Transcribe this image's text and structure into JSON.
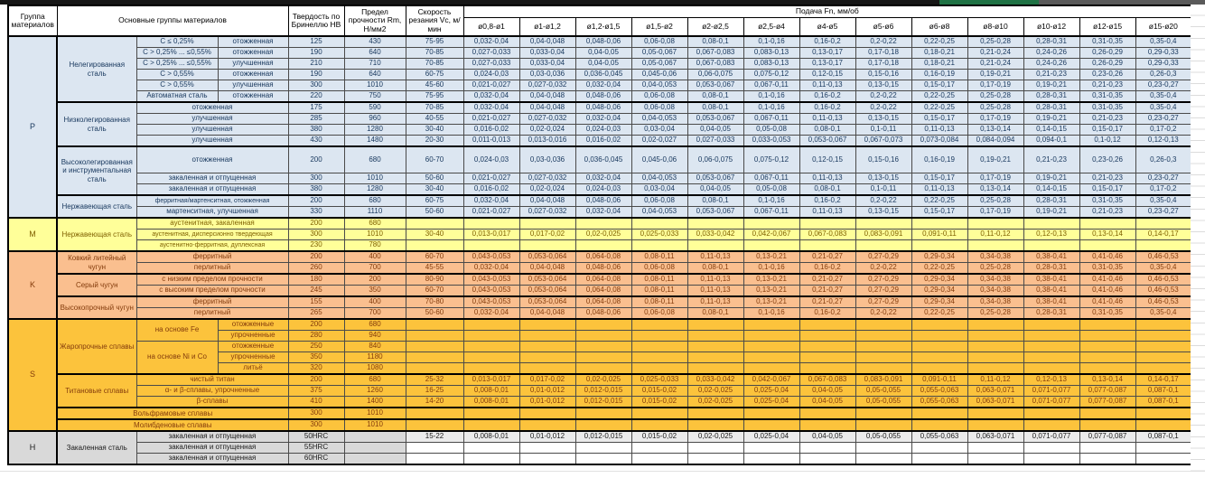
{
  "header": {
    "col_group": "Группа материалов",
    "col_materials": "Основные группы материалов",
    "col_hardness": "Твердость по Бринеллю HB",
    "col_strength": "Предел прочности Rm, Н/мм2",
    "col_speed": "Скорость резания Vc, м/мин",
    "feed_title": "Подача Fn, мм/об",
    "feed_cols": [
      "ø0,8-ø1",
      "ø1-ø1,2",
      "ø1,2-ø1,5",
      "ø1,5-ø2",
      "ø2-ø2,5",
      "ø2,5-ø4",
      "ø4-ø5",
      "ø5-ø6",
      "ø6-ø8",
      "ø8-ø10",
      "ø10-ø12",
      "ø12-ø15",
      "ø15-ø20"
    ]
  },
  "groups": [
    {
      "letter": "P",
      "color": "#DCE6F1",
      "text": "#17375D",
      "materials": [
        {
          "name": "Нелегированная сталь",
          "rows": [
            {
              "c1": "C ≤ 0,25%",
              "c2": "отожженная",
              "hb": "125",
              "rm": "430",
              "vc": "75-95",
              "feeds": [
                "0,032-0,04",
                "0,04-0,048",
                "0,048-0,06",
                "0,06-0,08",
                "0,08-0,1",
                "0,1-0,16",
                "0,16-0,2",
                "0,2-0,22",
                "0,22-0,25",
                "0,25-0,28",
                "0,28-0,31",
                "0,31-0,35",
                "0,35-0,4"
              ]
            },
            {
              "c1": "C > 0,25% ... ≤0,55%",
              "c2": "отожженная",
              "hb": "190",
              "rm": "640",
              "vc": "70-85",
              "feeds": [
                "0,027-0,033",
                "0,033-0,04",
                "0,04-0,05",
                "0,05-0,067",
                "0,067-0,083",
                "0,083-0,13",
                "0,13-0,17",
                "0,17-0,18",
                "0,18-0,21",
                "0,21-0,24",
                "0,24-0,26",
                "0,26-0,29",
                "0,29-0,33"
              ]
            },
            {
              "c1": "C > 0,25% ... ≤0,55%",
              "c2": "улучшенная",
              "hb": "210",
              "rm": "710",
              "vc": "70-85",
              "feeds": [
                "0,027-0,033",
                "0,033-0,04",
                "0,04-0,05",
                "0,05-0,067",
                "0,067-0,083",
                "0,083-0,13",
                "0,13-0,17",
                "0,17-0,18",
                "0,18-0,21",
                "0,21-0,24",
                "0,24-0,26",
                "0,26-0,29",
                "0,29-0,33"
              ]
            },
            {
              "c1": "C > 0,55%",
              "c2": "отожженная",
              "hb": "190",
              "rm": "640",
              "vc": "60-75",
              "feeds": [
                "0,024-0,03",
                "0,03-0,036",
                "0,036-0,045",
                "0,045-0,06",
                "0,06-0,075",
                "0,075-0,12",
                "0,12-0,15",
                "0,15-0,16",
                "0,16-0,19",
                "0,19-0,21",
                "0,21-0,23",
                "0,23-0,26",
                "0,26-0,3"
              ]
            },
            {
              "c1": "C > 0,55%",
              "c2": "улучшенная",
              "hb": "300",
              "rm": "1010",
              "vc": "45-60",
              "feeds": [
                "0,021-0,027",
                "0,027-0,032",
                "0,032-0,04",
                "0,04-0,053",
                "0,053-0,067",
                "0,067-0,11",
                "0,11-0,13",
                "0,13-0,15",
                "0,15-0,17",
                "0,17-0,19",
                "0,19-0,21",
                "0,21-0,23",
                "0,23-0,27"
              ]
            },
            {
              "c1": "Автоматная сталь",
              "c2": "отожженная",
              "hb": "220",
              "rm": "750",
              "vc": "75-95",
              "feeds": [
                "0,032-0,04",
                "0,04-0,048",
                "0,048-0,06",
                "0,06-0,08",
                "0,08-0,1",
                "0,1-0,16",
                "0,16-0,2",
                "0,2-0,22",
                "0,22-0,25",
                "0,25-0,28",
                "0,28-0,31",
                "0,31-0,35",
                "0,35-0,4"
              ]
            }
          ]
        },
        {
          "name": "Низколегированная сталь",
          "rows": [
            {
              "c12": "отожженная",
              "hb": "175",
              "rm": "590",
              "vc": "70-85",
              "feeds": [
                "0,032-0,04",
                "0,04-0,048",
                "0,048-0,06",
                "0,06-0,08",
                "0,08-0,1",
                "0,1-0,16",
                "0,16-0,2",
                "0,2-0,22",
                "0,22-0,25",
                "0,25-0,28",
                "0,28-0,31",
                "0,31-0,35",
                "0,35-0,4"
              ]
            },
            {
              "c12": "улучшенная",
              "hb": "285",
              "rm": "960",
              "vc": "40-55",
              "feeds": [
                "0,021-0,027",
                "0,027-0,032",
                "0,032-0,04",
                "0,04-0,053",
                "0,053-0,067",
                "0,067-0,11",
                "0,11-0,13",
                "0,13-0,15",
                "0,15-0,17",
                "0,17-0,19",
                "0,19-0,21",
                "0,21-0,23",
                "0,23-0,27"
              ]
            },
            {
              "c12": "улучшенная",
              "hb": "380",
              "rm": "1280",
              "vc": "30-40",
              "feeds": [
                "0,016-0,02",
                "0,02-0,024",
                "0,024-0,03",
                "0,03-0,04",
                "0,04-0,05",
                "0,05-0,08",
                "0,08-0,1",
                "0,1-0,11",
                "0,11-0,13",
                "0,13-0,14",
                "0,14-0,15",
                "0,15-0,17",
                "0,17-0,2"
              ]
            },
            {
              "c12": "улучшенная",
              "hb": "430",
              "rm": "1480",
              "vc": "20-30",
              "feeds": [
                "0,011-0,013",
                "0,013-0,016",
                "0,016-0,02",
                "0,02-0,027",
                "0,027-0,033",
                "0,033-0,053",
                "0,053-0,067",
                "0,067-0,073",
                "0,073-0,084",
                "0,084-0,094",
                "0,094-0,1",
                "0,1-0,12",
                "0,12-0,13"
              ]
            }
          ]
        },
        {
          "name": "Высоколегированная и инструментальная сталь",
          "rows": [
            {
              "c12": "отожженная",
              "tall": true,
              "hb": "200",
              "rm": "680",
              "vc": "60-70",
              "feeds": [
                "0,024-0,03",
                "0,03-0,036",
                "0,036-0,045",
                "0,045-0,06",
                "0,06-0,075",
                "0,075-0,12",
                "0,12-0,15",
                "0,15-0,16",
                "0,16-0,19",
                "0,19-0,21",
                "0,21-0,23",
                "0,23-0,26",
                "0,26-0,3"
              ]
            },
            {
              "c12": "закаленная и отпущенная",
              "hb": "300",
              "rm": "1010",
              "vc": "50-60",
              "feeds": [
                "0,021-0,027",
                "0,027-0,032",
                "0,032-0,04",
                "0,04-0,053",
                "0,053-0,067",
                "0,067-0,11",
                "0,11-0,13",
                "0,13-0,15",
                "0,15-0,17",
                "0,17-0,19",
                "0,19-0,21",
                "0,21-0,23",
                "0,23-0,27"
              ]
            },
            {
              "c12": "закаленная и отпущенная",
              "hb": "380",
              "rm": "1280",
              "vc": "30-40",
              "feeds": [
                "0,016-0,02",
                "0,02-0,024",
                "0,024-0,03",
                "0,03-0,04",
                "0,04-0,05",
                "0,05-0,08",
                "0,08-0,1",
                "0,1-0,11",
                "0,11-0,13",
                "0,13-0,14",
                "0,14-0,15",
                "0,15-0,17",
                "0,17-0,2"
              ]
            }
          ]
        },
        {
          "name": "Нержавеющая сталь",
          "rows": [
            {
              "c12": "ферритная/мартенситная, отожженная",
              "hb": "200",
              "rm": "680",
              "vc": "60-75",
              "feeds": [
                "0,032-0,04",
                "0,04-0,048",
                "0,048-0,06",
                "0,06-0,08",
                "0,08-0,1",
                "0,1-0,16",
                "0,16-0,2",
                "0,2-0,22",
                "0,22-0,25",
                "0,25-0,28",
                "0,28-0,31",
                "0,31-0,35",
                "0,35-0,4"
              ]
            },
            {
              "c12": "мартенситная, улучшенная",
              "hb": "330",
              "rm": "1110",
              "vc": "50-60",
              "feeds": [
                "0,021-0,027",
                "0,027-0,032",
                "0,032-0,04",
                "0,04-0,053",
                "0,053-0,067",
                "0,067-0,11",
                "0,11-0,13",
                "0,13-0,15",
                "0,15-0,17",
                "0,17-0,19",
                "0,19-0,21",
                "0,21-0,23",
                "0,23-0,27"
              ]
            }
          ]
        }
      ]
    },
    {
      "letter": "M",
      "color": "#FFFF99",
      "text": "#7F5F00",
      "materials": [
        {
          "name": "Нержавеющая сталь",
          "rows": [
            {
              "c12": "аустенитная, закаленная",
              "hb": "200",
              "rm": "680",
              "vc": "",
              "feeds": []
            },
            {
              "c12": "аустенитная, дисперсионно твердеющая",
              "hb": "300",
              "rm": "1010",
              "vc": "30-40",
              "feeds": [
                "0,013-0,017",
                "0,017-0,02",
                "0,02-0,025",
                "0,025-0,033",
                "0,033-0,042",
                "0,042-0,067",
                "0,067-0,083",
                "0,083-0,091",
                "0,091-0,11",
                "0,11-0,12",
                "0,12-0,13",
                "0,13-0,14",
                "0,14-0,17"
              ]
            },
            {
              "c12": "аустенитно-ферритная, дуплексная",
              "hb": "230",
              "rm": "780",
              "vc": "",
              "feeds": []
            }
          ]
        }
      ]
    },
    {
      "letter": "K",
      "color": "#FABF8F",
      "text": "#843C0C",
      "materials": [
        {
          "name": "Ковкий литейный чугун",
          "rows": [
            {
              "c12": "ферритный",
              "hb": "200",
              "rm": "400",
              "vc": "60-70",
              "feeds": [
                "0,043-0,053",
                "0,053-0,064",
                "0,064-0,08",
                "0,08-0,11",
                "0,11-0,13",
                "0,13-0,21",
                "0,21-0,27",
                "0,27-0,29",
                "0,29-0,34",
                "0,34-0,38",
                "0,38-0,41",
                "0,41-0,46",
                "0,46-0,53"
              ]
            },
            {
              "c12": "перлитный",
              "hb": "260",
              "rm": "700",
              "vc": "45-55",
              "feeds": [
                "0,032-0,04",
                "0,04-0,048",
                "0,048-0,06",
                "0,06-0,08",
                "0,08-0,1",
                "0,1-0,16",
                "0,16-0,2",
                "0,2-0,22",
                "0,22-0,25",
                "0,25-0,28",
                "0,28-0,31",
                "0,31-0,35",
                "0,35-0,4"
              ]
            }
          ]
        },
        {
          "name": "Серый чугун",
          "rows": [
            {
              "c12": "с низким пределом прочности",
              "hb": "180",
              "rm": "200",
              "vc": "80-90",
              "feeds": [
                "0,043-0,053",
                "0,053-0,064",
                "0,064-0,08",
                "0,08-0,11",
                "0,11-0,13",
                "0,13-0,21",
                "0,21-0,27",
                "0,27-0,29",
                "0,29-0,34",
                "0,34-0,38",
                "0,38-0,41",
                "0,41-0,46",
                "0,46-0,53"
              ]
            },
            {
              "c12": "с высоким пределом прочности",
              "hb": "245",
              "rm": "350",
              "vc": "60-70",
              "feeds": [
                "0,043-0,053",
                "0,053-0,064",
                "0,064-0,08",
                "0,08-0,11",
                "0,11-0,13",
                "0,13-0,21",
                "0,21-0,27",
                "0,27-0,29",
                "0,29-0,34",
                "0,34-0,38",
                "0,38-0,41",
                "0,41-0,46",
                "0,46-0,53"
              ]
            }
          ]
        },
        {
          "name": "Высокопрочный чугун",
          "rows": [
            {
              "c12": "ферритный",
              "hb": "155",
              "rm": "400",
              "vc": "70-80",
              "feeds": [
                "0,043-0,053",
                "0,053-0,064",
                "0,064-0,08",
                "0,08-0,11",
                "0,11-0,13",
                "0,13-0,21",
                "0,21-0,27",
                "0,27-0,29",
                "0,29-0,34",
                "0,34-0,38",
                "0,38-0,41",
                "0,41-0,46",
                "0,46-0,53"
              ]
            },
            {
              "c12": "перлитный",
              "hb": "265",
              "rm": "700",
              "vc": "50-60",
              "feeds": [
                "0,032-0,04",
                "0,04-0,048",
                "0,048-0,06",
                "0,06-0,08",
                "0,08-0,1",
                "0,1-0,16",
                "0,16-0,2",
                "0,2-0,22",
                "0,22-0,25",
                "0,25-0,28",
                "0,28-0,31",
                "0,31-0,35",
                "0,35-0,4"
              ]
            }
          ]
        }
      ]
    },
    {
      "letter": "S",
      "color": "#FCC33C",
      "text": "#843C0C",
      "materials": [
        {
          "name": "Жаропрочные сплавы",
          "rows": [
            {
              "c1": "на основе Fe",
              "c1_rows": 2,
              "c2": "отожженные",
              "hb": "200",
              "rm": "680",
              "vc": "",
              "feeds": []
            },
            {
              "c2": "упрочненные",
              "hb": "280",
              "rm": "940",
              "vc": "",
              "feeds": []
            },
            {
              "c1": "на основе Ni и Co",
              "c1_rows": 3,
              "c2": "отожженные",
              "hb": "250",
              "rm": "840",
              "vc": "",
              "feeds": []
            },
            {
              "c2": "упрочненные",
              "hb": "350",
              "rm": "1180",
              "vc": "",
              "feeds": []
            },
            {
              "c2": "литьё",
              "hb": "320",
              "rm": "1080",
              "vc": "",
              "feeds": []
            }
          ]
        },
        {
          "name": "Титановые сплавы",
          "rows": [
            {
              "c12": "чистый титан",
              "hb": "200",
              "rm": "680",
              "vc": "25-32",
              "feeds": [
                "0,013-0,017",
                "0,017-0,02",
                "0,02-0,025",
                "0,025-0,033",
                "0,033-0,042",
                "0,042-0,067",
                "0,067-0,083",
                "0,083-0,091",
                "0,091-0,11",
                "0,11-0,12",
                "0,12-0,13",
                "0,13-0,14",
                "0,14-0,17"
              ]
            },
            {
              "c12": "α- и β-сплавы, упрочненные",
              "hb": "375",
              "rm": "1260",
              "vc": "16-25",
              "feeds": [
                "0,008-0,01",
                "0,01-0,012",
                "0,012-0,015",
                "0,015-0,02",
                "0,02-0,025",
                "0,025-0,04",
                "0,04-0,05",
                "0,05-0,055",
                "0,055-0,063",
                "0,063-0,071",
                "0,071-0,077",
                "0,077-0,087",
                "0,087-0,1"
              ]
            },
            {
              "c12": "β-сплавы",
              "hb": "410",
              "rm": "1400",
              "vc": "14-20",
              "feeds": [
                "0,008-0,01",
                "0,01-0,012",
                "0,012-0,015",
                "0,015-0,02",
                "0,02-0,025",
                "0,025-0,04",
                "0,04-0,05",
                "0,05-0,055",
                "0,055-0,063",
                "0,063-0,071",
                "0,071-0,077",
                "0,077-0,087",
                "0,087-0,1"
              ]
            }
          ]
        },
        {
          "name": "Вольфрамовые сплавы",
          "span3": true,
          "rows": [
            {
              "hb": "300",
              "rm": "1010",
              "vc": "",
              "feeds": []
            }
          ]
        },
        {
          "name": "Молибденовые сплавы",
          "span3": true,
          "rows": [
            {
              "hb": "300",
              "rm": "1010",
              "vc": "",
              "feeds": []
            }
          ]
        }
      ]
    },
    {
      "letter": "H",
      "color": "#D9D9D9",
      "text": "#1A1A1A",
      "materials": [
        {
          "name": "Закаленная сталь",
          "rows": [
            {
              "c12": "закаленная и отпущенная",
              "hb": "50HRC",
              "rm": "",
              "vc": "15-22",
              "data_bg": "#EBEBEB",
              "feeds": [
                "0,008-0,01",
                "0,01-0,012",
                "0,012-0,015",
                "0,015-0,02",
                "0,02-0,025",
                "0,025-0,04",
                "0,04-0,05",
                "0,05-0,055",
                "0,055-0,063",
                "0,063-0,071",
                "0,071-0,077",
                "0,077-0,087",
                "0,087-0,1"
              ]
            },
            {
              "c12": "закаленная и отпущенная",
              "hb": "55HRC",
              "rm": "",
              "vc": "",
              "data_bg": "#FFFFFF",
              "feeds": []
            },
            {
              "c12": "закаленная и отпущенная",
              "hb": "60HRC",
              "rm": "",
              "vc": "",
              "data_bg": "#FFFFFF",
              "feeds": []
            }
          ]
        }
      ]
    }
  ]
}
